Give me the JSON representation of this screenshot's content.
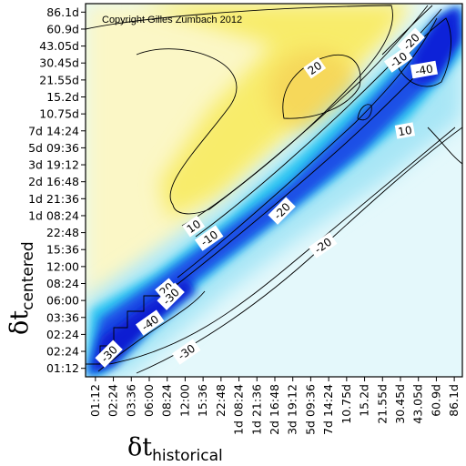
{
  "chart_data": {
    "type": "heatmap",
    "title": "",
    "annotation": "Copyright Gilles Zumbach 2012",
    "xlabel": {
      "symbol": "δt",
      "subscript": "historical"
    },
    "ylabel": {
      "symbol": "δt",
      "subscript": "centered"
    },
    "x_tick_labels": [
      "01:12",
      "02:24",
      "03:36",
      "06:00",
      "08:24",
      "12:00",
      "15:36",
      "22:48",
      "1d 08:24",
      "1d 21:36",
      "2d 16:48",
      "3d 19:12",
      "5d 09:36",
      "7d 14:24",
      "10.75d",
      "15.2d",
      "21.55d",
      "30.45d",
      "43.05d",
      "60.9d",
      "86.1d"
    ],
    "y_tick_labels": [
      "01:12",
      "02:24",
      "02:24",
      "03:36",
      "06:00",
      "08:24",
      "12:00",
      "15:36",
      "22:48",
      "1d 08:24",
      "1d 21:36",
      "2d 16:48",
      "3d 19:12",
      "5d 09:36",
      "7d 14:24",
      "10.75d",
      "15.2d",
      "21.55d",
      "30.45d",
      "43.05d",
      "60.9d",
      "86.1d"
    ],
    "contour_labels": [
      "20",
      "10",
      "-10",
      "-20",
      "-30",
      "-40",
      "-10",
      "-20",
      "-30",
      "-40",
      "10",
      "20",
      "-20",
      "-30"
    ],
    "colors": {
      "positive": "#f7e71a",
      "near_zero": "#ffffff",
      "negative_light": "#d8f4f8",
      "negative_mid": "#2ec7f2",
      "negative_strong": "#0a1fd8"
    },
    "grid": false,
    "legend": "none"
  }
}
